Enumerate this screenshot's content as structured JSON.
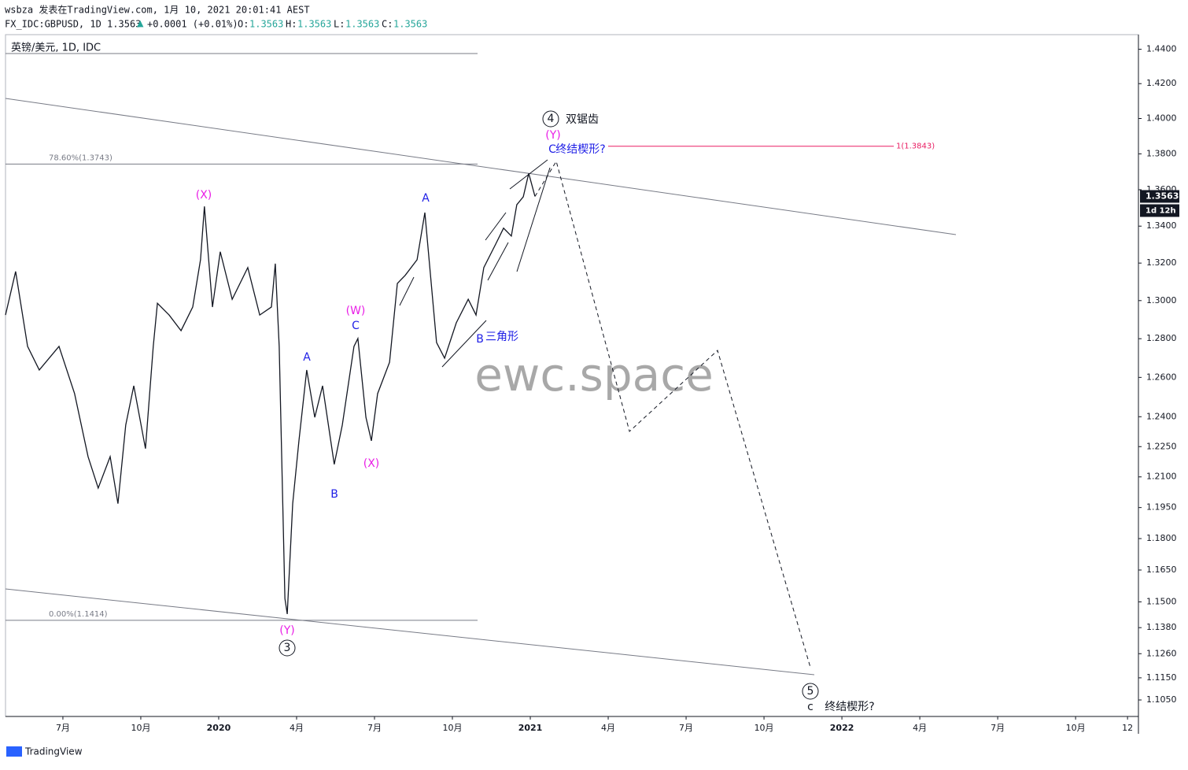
{
  "header": {
    "line1": "wsbza 发表在TradingView.com, 1月 10, 2021 20:01:41 AEST",
    "symbol": "FX_IDC:GBPUSD, 1D 1.3563",
    "change": "+0.0001 (+0.01%)",
    "ohlc": [
      {
        "label": "O:",
        "value": "1.3563"
      },
      {
        "label": "H:",
        "value": "1.3563"
      },
      {
        "label": "L:",
        "value": "1.3563"
      },
      {
        "label": "C:",
        "value": "1.3563"
      }
    ]
  },
  "chart_data": {
    "type": "line",
    "log_scale": true,
    "legend_text": "英镑/美元, 1D, IDC",
    "watermark": "ewc.space",
    "series": [
      {
        "color": "#131722",
        "x": [
          3.79,
          4.18,
          4.64,
          5.09,
          5.85,
          6.45,
          6.97,
          7.36,
          7.82,
          8.12,
          8.42,
          8.73,
          9.18,
          9.48,
          9.64,
          10.09,
          10.55,
          11.0,
          11.3,
          11.45,
          11.76,
          12.06,
          12.52,
          13.12,
          13.58,
          14.03,
          14.18,
          14.33,
          14.55,
          14.64,
          14.85,
          15.09,
          15.39,
          15.7,
          16.0,
          16.45,
          16.76,
          17.21,
          17.36,
          17.67,
          17.88,
          18.12,
          18.58,
          18.88,
          19.18,
          19.64,
          19.94,
          20.24,
          20.39,
          20.7,
          21.15,
          21.61,
          21.91,
          22.21,
          22.67,
          22.97,
          23.27,
          23.48,
          23.73,
          23.94,
          24.18
        ],
        "values": [
          1.2924,
          1.3155,
          1.276,
          1.2638,
          1.276,
          1.2517,
          1.22,
          1.2045,
          1.22,
          1.1969,
          1.2358,
          1.2557,
          1.224,
          1.276,
          1.2986,
          1.2924,
          1.2842,
          1.2966,
          1.3218,
          1.3508,
          1.2966,
          1.3261,
          1.3007,
          1.3176,
          1.2924,
          1.2966,
          1.3197,
          1.276,
          1.1516,
          1.1443,
          1.1969,
          1.2279,
          1.2638,
          1.2397,
          1.2557,
          1.2162,
          1.2358,
          1.276,
          1.2801,
          1.2397,
          1.2279,
          1.2517,
          1.2678,
          1.3091,
          1.3134,
          1.3218,
          1.3474,
          1.3007,
          1.278,
          1.2699,
          1.2883,
          1.3007,
          1.2924,
          1.3176,
          1.3303,
          1.3389,
          1.3346,
          1.3517,
          1.3561,
          1.3691,
          1.3563
        ]
      }
    ],
    "projection": {
      "x": [
        24.18,
        25.0,
        27.82,
        31.21,
        34.79
      ],
      "values": [
        1.3563,
        1.3758,
        1.2326,
        1.2739,
        1.1196
      ]
    },
    "last_price": 1.3563,
    "countdown": "1d 12h",
    "fib_levels": [
      {
        "label": "78.60%(1.3743)",
        "value": 1.3743
      },
      {
        "label": "0.00%(1.1414)",
        "value": 1.1414
      }
    ],
    "target": {
      "label": "1(1.3843)",
      "value": 1.3843,
      "color": "#e91e63"
    },
    "ylim": [
      1.0976,
      1.4486
    ],
    "yticks": [
      {
        "value": 1.44,
        "label": "1.4400"
      },
      {
        "value": 1.42,
        "label": "1.4200"
      },
      {
        "value": 1.4,
        "label": "1.4000"
      },
      {
        "value": 1.38,
        "label": "1.3800"
      },
      {
        "value": 1.36,
        "label": "1.3600"
      },
      {
        "value": 1.34,
        "label": "1.3400"
      },
      {
        "value": 1.32,
        "label": "1.3200"
      },
      {
        "value": 1.3,
        "label": "1.3000"
      },
      {
        "value": 1.28,
        "label": "1.2800"
      },
      {
        "value": 1.26,
        "label": "1.2600"
      },
      {
        "value": 1.24,
        "label": "1.2400"
      },
      {
        "value": 1.225,
        "label": "1.2250"
      },
      {
        "value": 1.21,
        "label": "1.2100"
      },
      {
        "value": 1.195,
        "label": "1.1950"
      },
      {
        "value": 1.18,
        "label": "1.1800"
      },
      {
        "value": 1.165,
        "label": "1.1650"
      },
      {
        "value": 1.15,
        "label": "1.1500"
      },
      {
        "value": 1.138,
        "label": "1.1380"
      },
      {
        "value": 1.126,
        "label": "1.1260"
      },
      {
        "value": 1.115,
        "label": "1.1150"
      },
      {
        "value": 1.105,
        "label": "1.1050"
      }
    ],
    "xlim": [
      3.79,
      47.42
    ],
    "xticks": [
      {
        "value": 6,
        "label": "7月"
      },
      {
        "value": 9,
        "label": "10月"
      },
      {
        "value": 12,
        "label": "2020"
      },
      {
        "value": 15,
        "label": "4月"
      },
      {
        "value": 18,
        "label": "7月"
      },
      {
        "value": 21,
        "label": "10月"
      },
      {
        "value": 24,
        "label": "2021"
      },
      {
        "value": 27,
        "label": "4月"
      },
      {
        "value": 30,
        "label": "7月"
      },
      {
        "value": 33,
        "label": "10月"
      },
      {
        "value": 36,
        "label": "2022"
      },
      {
        "value": 39,
        "label": "4月"
      },
      {
        "value": 42,
        "label": "7月"
      },
      {
        "value": 45,
        "label": "10月"
      },
      {
        "value": 47,
        "label": "12"
      }
    ],
    "annotations": [
      {
        "text": "(X)",
        "color": "#e91ee6"
      },
      {
        "text": "(W)",
        "color": "#e91ee6"
      },
      {
        "text": "C",
        "color": "#1e1ee6"
      },
      {
        "text": "A",
        "color": "#1e1ee6"
      },
      {
        "text": "B",
        "color": "#1e1ee6"
      },
      {
        "text": "(X)",
        "color": "#e91ee6"
      },
      {
        "text": "A",
        "color": "#1e1ee6"
      },
      {
        "text": "B",
        "color": "#1e1ee6"
      },
      {
        "text": "三角形",
        "color": "#1e1ee6"
      },
      {
        "text": "(Y)",
        "color": "#e91ee6"
      },
      {
        "text": "3",
        "color": "#131722"
      },
      {
        "text": "(Y)",
        "color": "#e91ee6"
      },
      {
        "text": "C",
        "color": "#1e1ee6"
      },
      {
        "text": "终结楔形?",
        "color": "#1e1ee6"
      },
      {
        "text": "4",
        "color": "#131722"
      },
      {
        "text": "双锯齿",
        "color": "#131722"
      },
      {
        "text": "5",
        "color": "#131722"
      },
      {
        "text": "c",
        "color": "#131722"
      },
      {
        "text": "终结楔形?",
        "color": "#131722"
      }
    ]
  },
  "footer": "TradingView"
}
